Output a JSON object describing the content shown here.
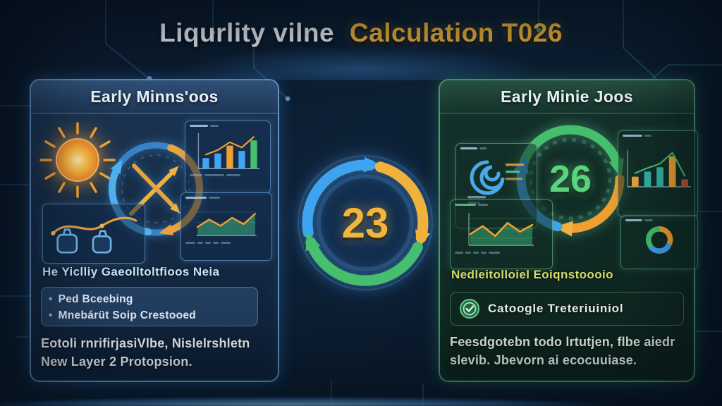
{
  "title": {
    "white_part": "Liqurlity vilne",
    "gold_part": "Calculation T026"
  },
  "center_cycle": {
    "value": "23"
  },
  "left_card": {
    "header": "Early Minns'oos",
    "subheading": "He Yiclliy Gaeolltoltfioos Neia",
    "bullets": [
      {
        "label": "Ped Bceebing"
      },
      {
        "label": "Mnebárüt Soip Crestooed"
      }
    ],
    "footer_line1": "Eotoli rnrifirjasiVlbe, Nislelrshletn",
    "footer_line2": "New Layer 2 Protopsion.",
    "bar_chart": {
      "values": [
        32,
        46,
        70,
        54,
        86
      ],
      "colors": [
        "#41a5ef",
        "#41a5ef",
        "#f0a030",
        "#41a5ef",
        "#46c06e"
      ],
      "trend": "#f0a030"
    },
    "line_chart": {
      "values": [
        30,
        56,
        34,
        62,
        40,
        76
      ],
      "stroke": "#f0a030",
      "fill": "rgba(70,200,140,0.45)"
    }
  },
  "right_card": {
    "header": "Early Minie Joos",
    "cycle_value": "26",
    "subheading": "Nedleitolloiel Eoiqnstoooio",
    "badge_label": "Catoogle Treteriuiniol",
    "footer_line1": "Feesdgotebn todo lrtutjen, flbe aiedr",
    "footer_line2": "slevib. Jbevorn ai ecocuuiase.",
    "bar_chart": {
      "values": [
        30,
        45,
        58,
        90,
        22
      ],
      "colors": [
        "#e8a33d",
        "#35b5a5",
        "#35b5a5",
        "#f0a030",
        "#b05a35"
      ],
      "trend": "#46c06e"
    },
    "line_chart": {
      "values": [
        36,
        62,
        30,
        72,
        44,
        66
      ],
      "stroke": "#f0a030",
      "fill": "rgba(60,180,120,0.5)"
    }
  },
  "colors": {
    "accent_gold": "#f2b63c",
    "accent_blue": "#3fa4ef",
    "accent_green": "#46c06e",
    "left_card_border": "#7cb6ec",
    "right_card_border": "#6ec896"
  }
}
